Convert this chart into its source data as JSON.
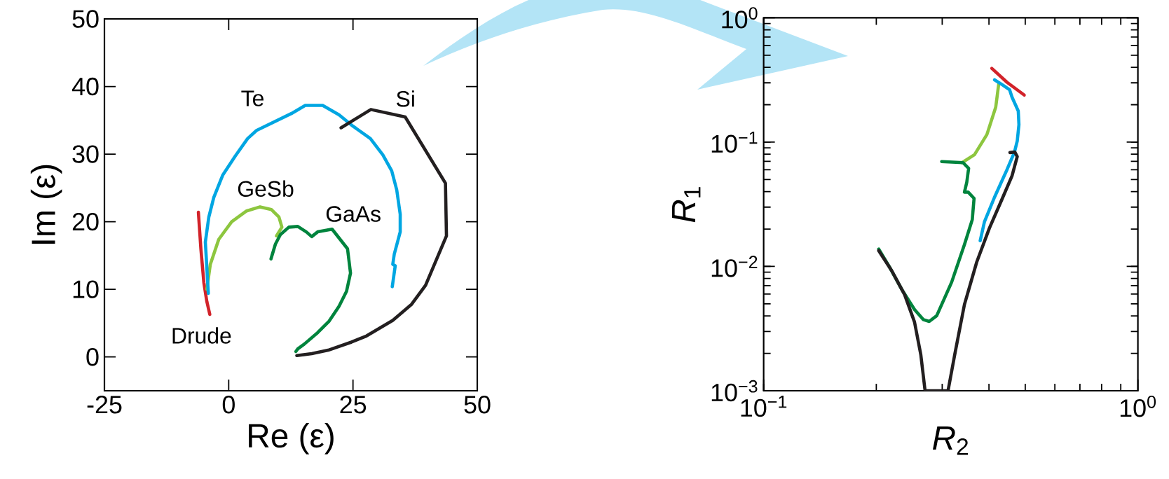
{
  "chart_data": [
    {
      "type": "line",
      "xlabel": "Re (ε)",
      "ylabel": "Im (ε)",
      "xlim": [
        -25,
        50
      ],
      "ylim": [
        -5,
        50
      ],
      "xticks": [
        -25,
        0,
        25,
        50
      ],
      "yticks": [
        0,
        10,
        20,
        30,
        40,
        50
      ],
      "series": [
        {
          "name": "Drude",
          "color": "#d2232a",
          "x": [
            -6.1,
            -5.6,
            -5.0,
            -4.4,
            -3.8
          ],
          "values": [
            21.4,
            16.0,
            11.0,
            8.2,
            6.3
          ]
        },
        {
          "name": "GeSb",
          "color": "#8dc63f",
          "x": [
            -4.4,
            -3.7,
            -2.0,
            0.6,
            3.6,
            6.3,
            8.6,
            10.1,
            10.7,
            9.6
          ],
          "values": [
            10.0,
            13.7,
            17.4,
            20.0,
            21.6,
            22.2,
            21.8,
            20.7,
            19.2,
            17.9
          ]
        },
        {
          "name": "Te",
          "color": "#00a6e2",
          "x": [
            -4.1,
            -4.7,
            -4.0,
            -3.0,
            -1.2,
            1.3,
            3.8,
            5.6,
            12.6,
            15.4,
            18.9,
            22.2,
            24.7,
            28.5,
            31.0,
            32.8,
            33.8,
            34.5,
            34.5,
            33.3,
            33.0,
            33.5,
            32.9
          ],
          "values": [
            9.4,
            17.0,
            20.7,
            23.6,
            26.9,
            29.7,
            32.3,
            33.5,
            36.0,
            37.2,
            37.2,
            35.8,
            34.3,
            32.3,
            29.9,
            27.5,
            24.7,
            21.1,
            18.5,
            15.2,
            13.7,
            13.5,
            10.4
          ]
        },
        {
          "name": "GaAs",
          "color": "#00843d",
          "x": [
            8.5,
            9.4,
            10.4,
            12.1,
            13.9,
            15.6,
            16.7,
            17.9,
            20.8,
            23.9,
            24.5,
            23.7,
            22.2,
            20.2,
            17.9,
            15.2,
            13.9,
            13.5
          ],
          "values": [
            14.5,
            16.7,
            18.1,
            19.2,
            19.3,
            18.5,
            17.8,
            18.5,
            18.9,
            16.0,
            12.4,
            9.7,
            7.5,
            5.3,
            3.6,
            1.9,
            1.2,
            0.8
          ]
        },
        {
          "name": "Si",
          "color": "#231f20",
          "x": [
            22.6,
            28.6,
            35.5,
            43.6,
            43.8,
            39.6,
            36.8,
            33.0,
            27.7,
            24.7,
            20.0,
            16.7,
            13.7
          ],
          "values": [
            33.9,
            36.6,
            35.5,
            25.7,
            17.9,
            10.6,
            7.8,
            5.4,
            3.1,
            2.2,
            1.0,
            0.5,
            0.2
          ]
        }
      ]
    },
    {
      "type": "line",
      "xlabel": "*R*$_{2}$",
      "ylabel": "*R*$_{1}$",
      "log": "xy",
      "xlim": [
        0.1,
        1
      ],
      "ylim": [
        0.001,
        1
      ],
      "xticks": [
        {
          "value": 0.1,
          "label": "10$^{−1}$"
        },
        {
          "value": 1,
          "label": "10$^{0}$"
        }
      ],
      "yticks": [
        {
          "value": 0.001,
          "label": "10$^{−3}$"
        },
        {
          "value": 0.01,
          "label": "10$^{−2}$"
        },
        {
          "value": 0.1,
          "label": "10$^{−1}$"
        },
        {
          "value": 1,
          "label": "10$^{0}$"
        }
      ],
      "series": [
        {
          "color": "#d2232a",
          "x": [
            0.407,
            0.447,
            0.497
          ],
          "values": [
            0.392,
            0.303,
            0.239
          ]
        },
        {
          "color": "#8dc63f",
          "x": [
            0.425,
            0.417,
            0.395,
            0.366,
            0.339
          ],
          "values": [
            0.297,
            0.191,
            0.115,
            0.0793,
            0.0684
          ]
        },
        {
          "color": "#00a6e2",
          "x": [
            0.414,
            0.436,
            0.454,
            0.461,
            0.479,
            0.481,
            0.476,
            0.468,
            0.447,
            0.414,
            0.389,
            0.379
          ],
          "values": [
            0.317,
            0.287,
            0.264,
            0.23,
            0.178,
            0.138,
            0.102,
            0.0832,
            0.0601,
            0.0361,
            0.0228,
            0.0161
          ]
        },
        {
          "color": "#00843d",
          "x": [
            0.299,
            0.341,
            0.353,
            0.349,
            0.344,
            0.352,
            0.365,
            0.361,
            0.344,
            0.318,
            0.29,
            0.277,
            0.267,
            0.253,
            0.234,
            0.217,
            0.203
          ],
          "values": [
            0.0697,
            0.0684,
            0.0615,
            0.0476,
            0.0396,
            0.0396,
            0.0353,
            0.0238,
            0.015,
            0.00748,
            0.00401,
            0.00361,
            0.00374,
            0.0045,
            0.00652,
            0.00989,
            0.0138
          ]
        },
        {
          "color": "#231f20",
          "x": [
            0.203,
            0.22,
            0.238,
            0.253,
            0.263,
            0.27,
            0.311,
            0.324,
            0.344,
            0.371,
            0.401,
            0.433,
            0.461,
            0.476,
            0.469,
            0.455
          ],
          "values": [
            0.0134,
            0.00922,
            0.00594,
            0.00357,
            0.00195,
            0.001,
            0.001,
            0.00195,
            0.00494,
            0.01084,
            0.0203,
            0.0345,
            0.0535,
            0.0765,
            0.0832,
            0.0824
          ]
        }
      ]
    }
  ]
}
